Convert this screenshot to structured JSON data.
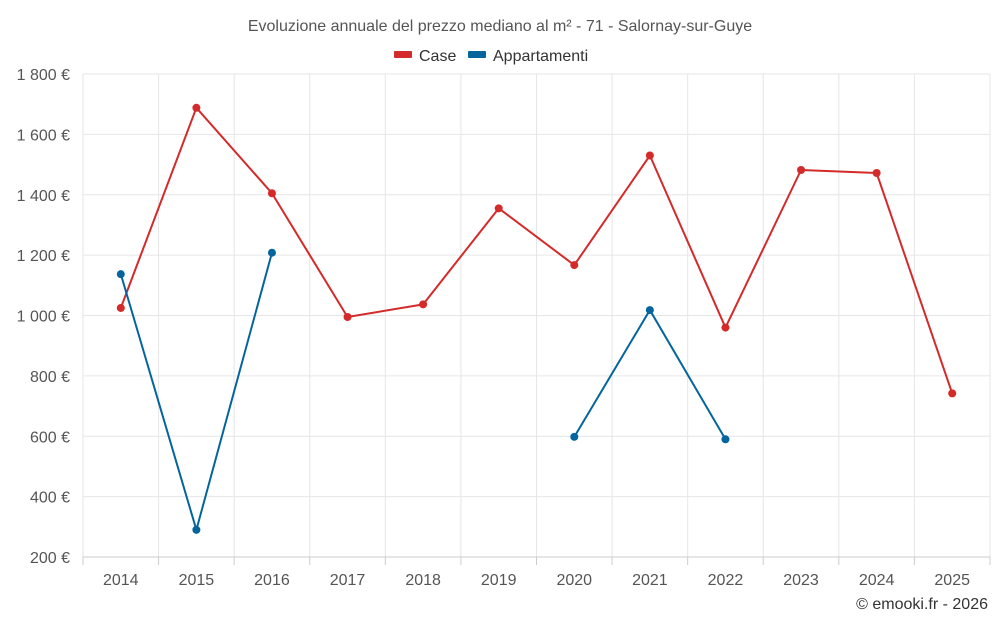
{
  "chart_data": {
    "type": "line",
    "title": "Evoluzione annuale del prezzo mediano al m² - 71 - Salornay-sur-Guye",
    "categories": [
      "2014",
      "2015",
      "2016",
      "2017",
      "2018",
      "2019",
      "2020",
      "2021",
      "2022",
      "2023",
      "2024",
      "2025"
    ],
    "y_tick_labels": [
      "200 €",
      "400 €",
      "600 €",
      "800 €",
      "1 000 €",
      "1 200 €",
      "1 400 €",
      "1 600 €",
      "1 800 €"
    ],
    "y_ticks": [
      200,
      400,
      600,
      800,
      1000,
      1200,
      1400,
      1600,
      1800
    ],
    "ylim": [
      200,
      1800
    ],
    "legend_position": "top-center",
    "series": [
      {
        "name": "Case",
        "color": "#d42a2a",
        "values": [
          1025,
          1688,
          1405,
          995,
          1037,
          1355,
          1167,
          1530,
          960,
          1482,
          1472,
          742
        ]
      },
      {
        "name": "Appartamenti",
        "color": "#04659d",
        "values": [
          1137,
          290,
          1208,
          null,
          null,
          null,
          598,
          1018,
          590,
          null,
          null,
          null
        ]
      }
    ],
    "credit": "© emooki.fr - 2026"
  }
}
